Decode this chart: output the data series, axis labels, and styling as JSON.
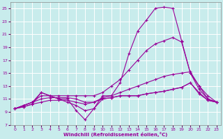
{
  "background_color": "#c8ecec",
  "grid_color": "#b0d8d8",
  "line_color": "#990099",
  "xlabel": "Windchill (Refroidissement éolien,°C)",
  "xlim": [
    -0.5,
    23.5
  ],
  "ylim": [
    7,
    26
  ],
  "yticks": [
    7,
    9,
    11,
    13,
    15,
    17,
    19,
    21,
    23,
    25
  ],
  "xticks": [
    0,
    1,
    2,
    3,
    4,
    5,
    6,
    7,
    8,
    9,
    10,
    11,
    12,
    13,
    14,
    15,
    16,
    17,
    18,
    19,
    20,
    21,
    22,
    23
  ],
  "series": [
    {
      "x": [
        0,
        1,
        2,
        3,
        4,
        5,
        6,
        7,
        8,
        9,
        10,
        11,
        12,
        13,
        14,
        15,
        16,
        17,
        18,
        19,
        20,
        21,
        22,
        23
      ],
      "y": [
        9.5,
        10.0,
        10.5,
        12.0,
        11.5,
        11.0,
        11.0,
        9.2,
        7.8,
        9.5,
        11.5,
        11.5,
        13.5,
        18.0,
        21.5,
        23.2,
        25.0,
        25.2,
        25.0,
        20.0,
        15.0,
        12.5,
        11.0,
        10.5
      ]
    },
    {
      "x": [
        0,
        1,
        2,
        3,
        4,
        5,
        6,
        7,
        8,
        9,
        10,
        11,
        12,
        13,
        14,
        15,
        16,
        17,
        18,
        19,
        20,
        21,
        22,
        23
      ],
      "y": [
        9.5,
        10.0,
        10.5,
        11.5,
        11.5,
        11.5,
        11.5,
        11.5,
        11.5,
        11.5,
        12.0,
        13.0,
        14.0,
        15.5,
        17.0,
        18.5,
        19.5,
        20.0,
        20.5,
        19.8,
        15.0,
        13.0,
        11.0,
        10.5
      ]
    },
    {
      "x": [
        0,
        1,
        2,
        3,
        4,
        5,
        6,
        7,
        8,
        9,
        10,
        11,
        12,
        13,
        14,
        15,
        16,
        17,
        18,
        19,
        20,
        21,
        22,
        23
      ],
      "y": [
        9.5,
        10.0,
        10.5,
        11.0,
        11.2,
        11.2,
        11.2,
        11.0,
        10.5,
        10.5,
        11.2,
        11.5,
        12.0,
        12.5,
        13.0,
        13.5,
        14.0,
        14.5,
        14.8,
        15.0,
        15.2,
        13.0,
        11.5,
        10.5
      ]
    },
    {
      "x": [
        0,
        1,
        2,
        3,
        4,
        5,
        6,
        7,
        8,
        9,
        10,
        11,
        12,
        13,
        14,
        15,
        16,
        17,
        18,
        19,
        20,
        21,
        22,
        23
      ],
      "y": [
        9.5,
        9.8,
        10.2,
        10.5,
        10.8,
        10.8,
        10.8,
        10.5,
        10.2,
        10.5,
        11.0,
        11.2,
        11.5,
        11.5,
        11.5,
        11.8,
        12.0,
        12.2,
        12.5,
        12.8,
        13.5,
        12.0,
        10.8,
        10.5
      ]
    },
    {
      "x": [
        0,
        1,
        2,
        3,
        4,
        5,
        6,
        7,
        8,
        9,
        10,
        11,
        12,
        13,
        14,
        15,
        16,
        17,
        18,
        19,
        20,
        21,
        22,
        23
      ],
      "y": [
        9.5,
        9.8,
        10.2,
        12.0,
        11.5,
        11.0,
        10.5,
        10.0,
        9.2,
        9.5,
        11.0,
        11.2,
        11.5,
        11.5,
        11.5,
        11.8,
        12.0,
        12.2,
        12.5,
        12.8,
        13.5,
        11.8,
        10.8,
        10.5
      ]
    }
  ]
}
